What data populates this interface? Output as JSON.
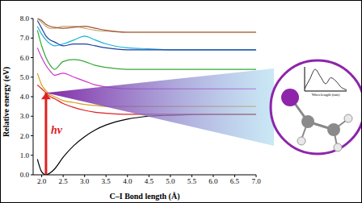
{
  "chart_data": {
    "type": "line",
    "x_label": "C–I Bond length (Å)",
    "y_label": "Relative energy (eV)",
    "x": [
      1.9,
      2.0,
      2.1,
      2.2,
      2.3,
      2.5,
      2.75,
      3.0,
      3.25,
      3.5,
      4.0,
      4.5,
      5.0,
      6.0,
      7.0
    ],
    "series": [
      {
        "color": "#000000",
        "values": [
          0.8,
          0.15,
          0.0,
          0.1,
          0.3,
          0.9,
          1.5,
          1.95,
          2.3,
          2.55,
          2.85,
          3.0,
          3.05,
          3.1,
          3.1
        ]
      },
      {
        "color": "#e02020",
        "values": [
          4.6,
          4.4,
          4.2,
          4.0,
          3.9,
          3.65,
          3.45,
          3.3,
          3.2,
          3.15,
          3.1,
          3.1,
          3.1,
          3.1,
          3.1
        ]
      },
      {
        "color": "#d4a017",
        "values": [
          5.2,
          4.6,
          4.3,
          4.1,
          4.0,
          3.8,
          3.7,
          3.6,
          3.55,
          3.5,
          3.5,
          3.5,
          3.5,
          3.5,
          3.5
        ]
      },
      {
        "color": "#cc33cc",
        "values": [
          6.5,
          6.0,
          5.6,
          5.3,
          5.1,
          5.2,
          5.0,
          4.8,
          4.6,
          4.5,
          4.4,
          4.4,
          4.4,
          4.4,
          4.4
        ]
      },
      {
        "color": "#33aa33",
        "values": [
          7.4,
          6.6,
          6.0,
          5.6,
          5.4,
          5.8,
          5.9,
          5.8,
          5.6,
          5.5,
          5.4,
          5.4,
          5.4,
          5.4,
          5.4
        ]
      },
      {
        "color": "#17b3d6",
        "values": [
          7.6,
          7.2,
          6.9,
          6.7,
          6.6,
          6.7,
          6.9,
          7.1,
          6.9,
          6.7,
          6.5,
          6.45,
          6.4,
          6.4,
          6.4
        ]
      },
      {
        "color": "#1f3fa0",
        "values": [
          7.9,
          7.5,
          7.1,
          6.9,
          6.8,
          6.6,
          6.7,
          6.7,
          6.6,
          6.5,
          6.4,
          6.4,
          6.4,
          6.4,
          6.4
        ]
      },
      {
        "color": "#c8a878",
        "values": [
          8.0,
          7.8,
          7.6,
          7.5,
          7.5,
          7.6,
          7.6,
          7.5,
          7.4,
          7.35,
          7.3,
          7.3,
          7.3,
          7.3,
          7.3
        ]
      },
      {
        "color": "#a0522d",
        "values": [
          8.0,
          7.9,
          7.7,
          7.6,
          7.55,
          7.5,
          7.55,
          7.6,
          7.5,
          7.4,
          7.3,
          7.3,
          7.3,
          7.3,
          7.3
        ]
      }
    ],
    "xlim": [
      1.8,
      7.0
    ],
    "xticks": [
      {
        "value": 2.0,
        "label": "2.0"
      },
      {
        "value": 2.5,
        "label": "2.5"
      },
      {
        "value": 3.0,
        "label": "3.0"
      },
      {
        "value": 3.5,
        "label": "3.5"
      },
      {
        "value": 4.0,
        "label": "4.0"
      },
      {
        "value": 4.5,
        "label": "4.5"
      },
      {
        "value": 5.0,
        "label": "5.0"
      },
      {
        "value": 5.5,
        "label": "5.5"
      },
      {
        "value": 6.0,
        "label": "6.0"
      },
      {
        "value": 6.5,
        "label": "6.5"
      },
      {
        "value": 7.0,
        "label": "7.0"
      }
    ],
    "ylim": [
      0,
      8
    ],
    "yticks": [
      {
        "value": 0,
        "label": "0.0"
      },
      {
        "value": 1,
        "label": "1.0"
      },
      {
        "value": 2,
        "label": "2.0"
      },
      {
        "value": 3,
        "label": "3.0"
      },
      {
        "value": 4,
        "label": "4.0"
      },
      {
        "value": 5,
        "label": "5.0"
      },
      {
        "value": 6,
        "label": "6.0"
      },
      {
        "value": 7,
        "label": "7.0"
      },
      {
        "value": 8,
        "label": "8.0"
      }
    ],
    "grid": false,
    "annotations": [
      {
        "text": "hν",
        "x": 2.1,
        "y_from": 0,
        "y_to": 4.2,
        "color": "#e02020"
      }
    ],
    "inset": {
      "type": "line",
      "x_label": "Wavelength (nm)",
      "x": [
        180,
        190,
        200,
        210,
        220,
        230,
        240,
        250,
        260
      ],
      "values": [
        0.1,
        0.5,
        0.9,
        0.6,
        0.3,
        0.55,
        0.4,
        0.15,
        0.05
      ],
      "xlim": [
        180,
        260
      ],
      "ylim": [
        0,
        1
      ],
      "color": "#000000",
      "tick_labels": false
    }
  }
}
